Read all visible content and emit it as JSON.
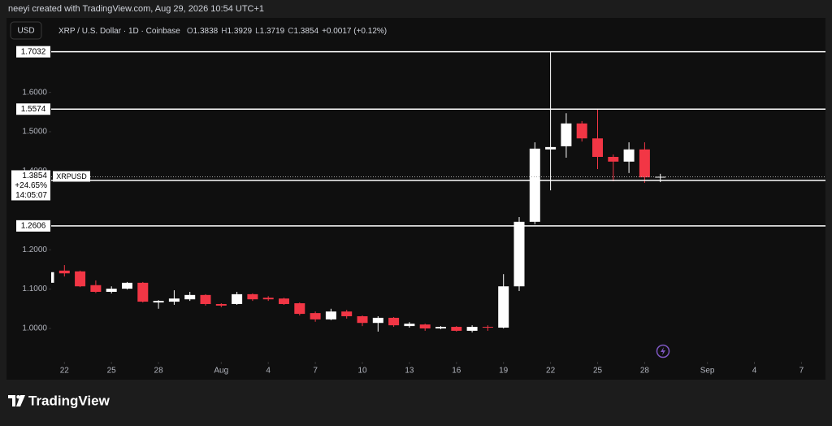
{
  "header": "neeyi created with TradingView.com, Aug 29, 2026 10:54 UTC+1",
  "footer": "TradingView",
  "chart_data": {
    "type": "candlestick",
    "currency": "USD",
    "title": "XRP / U.S. Dollar · 1D · Coinbase",
    "ohlc_legend": [
      {
        "label": "O",
        "value": "1.3838"
      },
      {
        "label": "H",
        "value": "1.3929"
      },
      {
        "label": "L",
        "value": "1.3719"
      },
      {
        "label": "C",
        "value": "1.3854"
      }
    ],
    "change": "+0.0017 (+0.12%)",
    "up_color": "#ffffff",
    "down_color": "#f23645",
    "x": [
      "2026-07-21",
      "2026-07-22",
      "2026-07-23",
      "2026-07-24",
      "2026-07-25",
      "2026-07-26",
      "2026-07-27",
      "2026-07-28",
      "2026-07-29",
      "2026-07-30",
      "2026-07-31",
      "2026-08-01",
      "2026-08-02",
      "2026-08-03",
      "2026-08-04",
      "2026-08-05",
      "2026-08-06",
      "2026-08-07",
      "2026-08-08",
      "2026-08-09",
      "2026-08-10",
      "2026-08-11",
      "2026-08-12",
      "2026-08-13",
      "2026-08-14",
      "2026-08-15",
      "2026-08-16",
      "2026-08-17",
      "2026-08-18",
      "2026-08-19",
      "2026-08-20",
      "2026-08-21",
      "2026-08-22",
      "2026-08-23",
      "2026-08-24",
      "2026-08-25",
      "2026-08-26",
      "2026-08-27",
      "2026-08-28",
      "2026-08-29"
    ],
    "open": [
      1.116,
      1.147,
      1.145,
      1.11,
      1.093,
      1.101,
      1.116,
      1.066,
      1.068,
      1.074,
      1.085,
      1.062,
      1.062,
      1.087,
      1.078,
      1.076,
      1.064,
      1.039,
      1.023,
      1.043,
      1.031,
      1.014,
      1.027,
      1.006,
      1.01,
      1.0,
      1.004,
      0.994,
      1.004,
      1.002,
      1.107,
      1.271,
      1.455,
      1.463,
      1.521,
      1.483,
      1.436,
      1.424,
      1.455,
      1.3838
    ],
    "high": [
      1.147,
      1.161,
      1.147,
      1.122,
      1.107,
      1.118,
      1.118,
      1.072,
      1.097,
      1.093,
      1.087,
      1.064,
      1.093,
      1.089,
      1.082,
      1.078,
      1.066,
      1.043,
      1.05,
      1.047,
      1.033,
      1.031,
      1.029,
      1.016,
      1.012,
      1.006,
      1.006,
      1.008,
      1.008,
      1.138,
      1.283,
      1.473,
      1.7032,
      1.547,
      1.527,
      1.5574,
      1.442,
      1.473,
      1.473,
      1.3929
    ],
    "low": [
      1.112,
      1.132,
      1.105,
      1.09,
      1.089,
      1.099,
      1.066,
      1.05,
      1.06,
      1.07,
      1.058,
      1.054,
      1.06,
      1.07,
      1.07,
      1.06,
      1.033,
      1.017,
      1.021,
      1.025,
      1.006,
      0.992,
      1.004,
      1.002,
      0.994,
      0.998,
      0.992,
      0.99,
      0.994,
      1.0,
      1.095,
      1.265,
      1.351,
      1.434,
      1.475,
      1.405,
      1.374,
      1.395,
      1.37,
      1.3719
    ],
    "close": [
      1.143,
      1.14,
      1.107,
      1.093,
      1.101,
      1.116,
      1.068,
      1.07,
      1.076,
      1.085,
      1.062,
      1.058,
      1.087,
      1.074,
      1.074,
      1.062,
      1.037,
      1.023,
      1.043,
      1.031,
      1.014,
      1.027,
      1.008,
      1.012,
      1.0,
      1.004,
      0.994,
      1.004,
      1.002,
      1.107,
      1.271,
      1.457,
      1.461,
      1.521,
      1.483,
      1.436,
      1.424,
      1.455,
      1.384,
      1.3854
    ],
    "ylim": [
      0.8698,
      1.7893
    ],
    "yticks": [
      {
        "value": 1.0,
        "label": "1.0000"
      },
      {
        "value": 1.1,
        "label": "1.1000"
      },
      {
        "value": 1.2,
        "label": "1.2000"
      },
      {
        "value": 1.4,
        "label": "1.4000"
      },
      {
        "value": 1.5,
        "label": "1.5000"
      },
      {
        "value": 1.6,
        "label": "1.6000"
      }
    ],
    "xticks": [
      {
        "value": "2026-07-22",
        "label": "22"
      },
      {
        "value": "2026-07-25",
        "label": "25"
      },
      {
        "value": "2026-07-28",
        "label": "28"
      },
      {
        "value": "2026-08-01",
        "label": "Aug"
      },
      {
        "value": "2026-08-04",
        "label": "4"
      },
      {
        "value": "2026-08-07",
        "label": "7"
      },
      {
        "value": "2026-08-10",
        "label": "10"
      },
      {
        "value": "2026-08-13",
        "label": "13"
      },
      {
        "value": "2026-08-16",
        "label": "16"
      },
      {
        "value": "2026-08-19",
        "label": "19"
      },
      {
        "value": "2026-08-22",
        "label": "22"
      },
      {
        "value": "2026-08-25",
        "label": "25"
      },
      {
        "value": "2026-08-28",
        "label": "28"
      },
      {
        "value": "2026-09-01",
        "label": "Sep"
      },
      {
        "value": "2026-09-04",
        "label": "4"
      },
      {
        "value": "2026-09-07",
        "label": "7"
      }
    ],
    "levels": [
      1.7032,
      1.5574,
      1.3762,
      1.2606
    ],
    "price_label": {
      "symbol": "XRPUSD",
      "value": 1.3854,
      "change": "+24.65%",
      "countdown": "14:05:07"
    }
  }
}
